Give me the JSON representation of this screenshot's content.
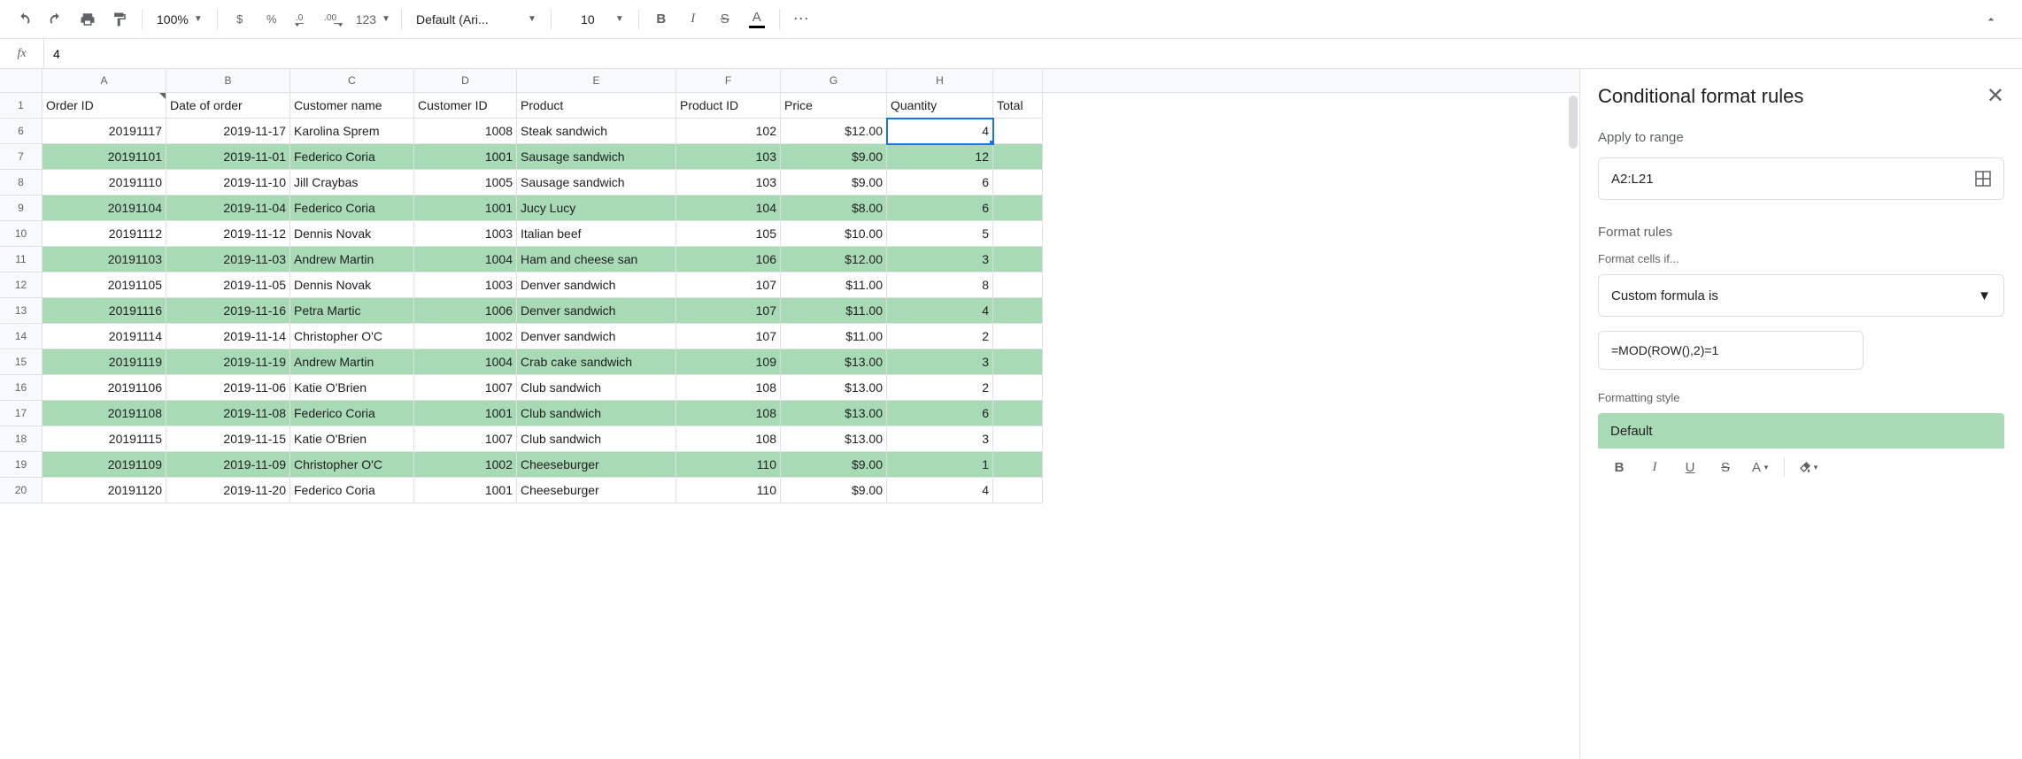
{
  "toolbar": {
    "zoom": "100%",
    "font": "Default (Ari...",
    "fontsize": "10"
  },
  "formula_bar": {
    "fx": "fx",
    "value": "4"
  },
  "sheet": {
    "columns": [
      "A",
      "B",
      "C",
      "D",
      "E",
      "F",
      "G",
      "H"
    ],
    "last_col_label": "Total",
    "row_numbers": [
      "1",
      "6",
      "7",
      "8",
      "9",
      "10",
      "11",
      "12",
      "13",
      "14",
      "15",
      "16",
      "17",
      "18",
      "19",
      "20"
    ],
    "headers": [
      "Order ID",
      "Date of order",
      "Customer name",
      "Customer ID",
      "Product",
      "Product ID",
      "Price",
      "Quantity"
    ],
    "selected_cell": {
      "row_idx": 1,
      "col_idx": 7
    },
    "band_color": "#a8dab5",
    "rows": [
      {
        "band": false,
        "cells": [
          "20191117",
          "2019-11-17",
          "Karolina Sprem",
          "1008",
          "Steak sandwich",
          "102",
          "$12.00",
          "4"
        ]
      },
      {
        "band": true,
        "cells": [
          "20191101",
          "2019-11-01",
          "Federico Coria",
          "1001",
          "Sausage sandwich",
          "103",
          "$9.00",
          "12"
        ]
      },
      {
        "band": false,
        "cells": [
          "20191110",
          "2019-11-10",
          "Jill Craybas",
          "1005",
          "Sausage sandwich",
          "103",
          "$9.00",
          "6"
        ]
      },
      {
        "band": true,
        "cells": [
          "20191104",
          "2019-11-04",
          "Federico Coria",
          "1001",
          "Jucy Lucy",
          "104",
          "$8.00",
          "6"
        ]
      },
      {
        "band": false,
        "cells": [
          "20191112",
          "2019-11-12",
          "Dennis Novak",
          "1003",
          "Italian beef",
          "105",
          "$10.00",
          "5"
        ]
      },
      {
        "band": true,
        "cells": [
          "20191103",
          "2019-11-03",
          "Andrew Martin",
          "1004",
          "Ham and cheese san",
          "106",
          "$12.00",
          "3"
        ]
      },
      {
        "band": false,
        "cells": [
          "20191105",
          "2019-11-05",
          "Dennis Novak",
          "1003",
          "Denver sandwich",
          "107",
          "$11.00",
          "8"
        ]
      },
      {
        "band": true,
        "cells": [
          "20191116",
          "2019-11-16",
          "Petra Martic",
          "1006",
          "Denver sandwich",
          "107",
          "$11.00",
          "4"
        ]
      },
      {
        "band": false,
        "cells": [
          "20191114",
          "2019-11-14",
          "Christopher O'C",
          "1002",
          "Denver sandwich",
          "107",
          "$11.00",
          "2"
        ]
      },
      {
        "band": true,
        "cells": [
          "20191119",
          "2019-11-19",
          "Andrew Martin",
          "1004",
          "Crab cake sandwich",
          "109",
          "$13.00",
          "3"
        ]
      },
      {
        "band": false,
        "cells": [
          "20191106",
          "2019-11-06",
          "Katie O'Brien",
          "1007",
          "Club sandwich",
          "108",
          "$13.00",
          "2"
        ]
      },
      {
        "band": true,
        "cells": [
          "20191108",
          "2019-11-08",
          "Federico Coria",
          "1001",
          "Club sandwich",
          "108",
          "$13.00",
          "6"
        ]
      },
      {
        "band": false,
        "cells": [
          "20191115",
          "2019-11-15",
          "Katie O'Brien",
          "1007",
          "Club sandwich",
          "108",
          "$13.00",
          "3"
        ]
      },
      {
        "band": true,
        "cells": [
          "20191109",
          "2019-11-09",
          "Christopher O'C",
          "1002",
          "Cheeseburger",
          "110",
          "$9.00",
          "1"
        ]
      },
      {
        "band": false,
        "cells": [
          "20191120",
          "2019-11-20",
          "Federico Coria",
          "1001",
          "Cheeseburger",
          "110",
          "$9.00",
          "4"
        ]
      }
    ],
    "right_align_cols": [
      0,
      1,
      3,
      5,
      6,
      7
    ]
  },
  "sidebar": {
    "title": "Conditional format rules",
    "apply_label": "Apply to range",
    "range": "A2:L21",
    "rules_label": "Format rules",
    "cells_if_label": "Format cells if...",
    "condition": "Custom formula is",
    "formula": "=MOD(ROW(),2)=1",
    "style_label": "Formatting style",
    "default_style": "Default",
    "default_bg": "#a8dab5"
  }
}
